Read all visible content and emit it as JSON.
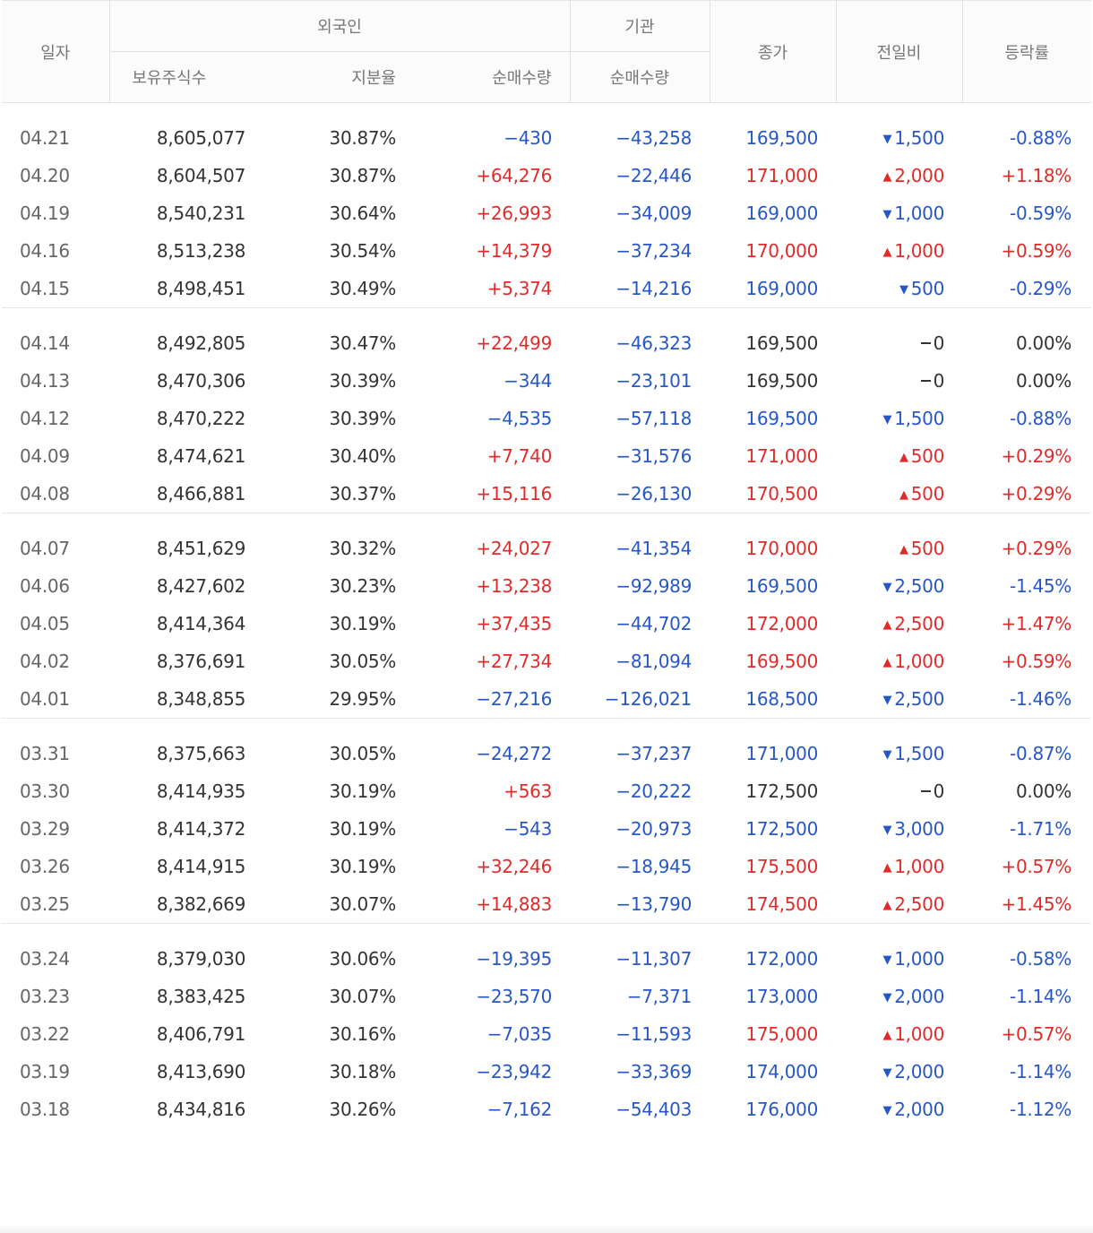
{
  "headers": {
    "date": "일자",
    "foreign_group": "외국인",
    "institution_group": "기관",
    "close": "종가",
    "change": "전일비",
    "rate": "등락률",
    "holdings": "보유주식수",
    "ratio": "지분율",
    "foreign_net": "순매수량",
    "inst_net": "순매수량"
  },
  "rows": [
    {
      "date": "04.21",
      "holdings": "8,605,077",
      "ratio": "30.87%",
      "foreign_net": "−430",
      "inst_net": "−43,258",
      "close": "169,500",
      "change": "1,500",
      "rate": "-0.88%",
      "dir": "down",
      "fdir": "down"
    },
    {
      "date": "04.20",
      "holdings": "8,604,507",
      "ratio": "30.87%",
      "foreign_net": "+64,276",
      "inst_net": "−22,446",
      "close": "171,000",
      "change": "2,000",
      "rate": "+1.18%",
      "dir": "up",
      "fdir": "up"
    },
    {
      "date": "04.19",
      "holdings": "8,540,231",
      "ratio": "30.64%",
      "foreign_net": "+26,993",
      "inst_net": "−34,009",
      "close": "169,000",
      "change": "1,000",
      "rate": "-0.59%",
      "dir": "down",
      "fdir": "up"
    },
    {
      "date": "04.16",
      "holdings": "8,513,238",
      "ratio": "30.54%",
      "foreign_net": "+14,379",
      "inst_net": "−37,234",
      "close": "170,000",
      "change": "1,000",
      "rate": "+0.59%",
      "dir": "up",
      "fdir": "up"
    },
    {
      "date": "04.15",
      "holdings": "8,498,451",
      "ratio": "30.49%",
      "foreign_net": "+5,374",
      "inst_net": "−14,216",
      "close": "169,000",
      "change": "500",
      "rate": "-0.29%",
      "dir": "down",
      "fdir": "up"
    },
    {
      "date": "04.14",
      "holdings": "8,492,805",
      "ratio": "30.47%",
      "foreign_net": "+22,499",
      "inst_net": "−46,323",
      "close": "169,500",
      "change": "0",
      "rate": "0.00%",
      "dir": "flat",
      "fdir": "up"
    },
    {
      "date": "04.13",
      "holdings": "8,470,306",
      "ratio": "30.39%",
      "foreign_net": "−344",
      "inst_net": "−23,101",
      "close": "169,500",
      "change": "0",
      "rate": "0.00%",
      "dir": "flat",
      "fdir": "down"
    },
    {
      "date": "04.12",
      "holdings": "8,470,222",
      "ratio": "30.39%",
      "foreign_net": "−4,535",
      "inst_net": "−57,118",
      "close": "169,500",
      "change": "1,500",
      "rate": "-0.88%",
      "dir": "down",
      "fdir": "down"
    },
    {
      "date": "04.09",
      "holdings": "8,474,621",
      "ratio": "30.40%",
      "foreign_net": "+7,740",
      "inst_net": "−31,576",
      "close": "171,000",
      "change": "500",
      "rate": "+0.29%",
      "dir": "up",
      "fdir": "up"
    },
    {
      "date": "04.08",
      "holdings": "8,466,881",
      "ratio": "30.37%",
      "foreign_net": "+15,116",
      "inst_net": "−26,130",
      "close": "170,500",
      "change": "500",
      "rate": "+0.29%",
      "dir": "up",
      "fdir": "up"
    },
    {
      "date": "04.07",
      "holdings": "8,451,629",
      "ratio": "30.32%",
      "foreign_net": "+24,027",
      "inst_net": "−41,354",
      "close": "170,000",
      "change": "500",
      "rate": "+0.29%",
      "dir": "up",
      "fdir": "up"
    },
    {
      "date": "04.06",
      "holdings": "8,427,602",
      "ratio": "30.23%",
      "foreign_net": "+13,238",
      "inst_net": "−92,989",
      "close": "169,500",
      "change": "2,500",
      "rate": "-1.45%",
      "dir": "down",
      "fdir": "up"
    },
    {
      "date": "04.05",
      "holdings": "8,414,364",
      "ratio": "30.19%",
      "foreign_net": "+37,435",
      "inst_net": "−44,702",
      "close": "172,000",
      "change": "2,500",
      "rate": "+1.47%",
      "dir": "up",
      "fdir": "up"
    },
    {
      "date": "04.02",
      "holdings": "8,376,691",
      "ratio": "30.05%",
      "foreign_net": "+27,734",
      "inst_net": "−81,094",
      "close": "169,500",
      "change": "1,000",
      "rate": "+0.59%",
      "dir": "up",
      "fdir": "up"
    },
    {
      "date": "04.01",
      "holdings": "8,348,855",
      "ratio": "29.95%",
      "foreign_net": "−27,216",
      "inst_net": "−126,021",
      "close": "168,500",
      "change": "2,500",
      "rate": "-1.46%",
      "dir": "down",
      "fdir": "down"
    },
    {
      "date": "03.31",
      "holdings": "8,375,663",
      "ratio": "30.05%",
      "foreign_net": "−24,272",
      "inst_net": "−37,237",
      "close": "171,000",
      "change": "1,500",
      "rate": "-0.87%",
      "dir": "down",
      "fdir": "down"
    },
    {
      "date": "03.30",
      "holdings": "8,414,935",
      "ratio": "30.19%",
      "foreign_net": "+563",
      "inst_net": "−20,222",
      "close": "172,500",
      "change": "0",
      "rate": "0.00%",
      "dir": "flat",
      "fdir": "up"
    },
    {
      "date": "03.29",
      "holdings": "8,414,372",
      "ratio": "30.19%",
      "foreign_net": "−543",
      "inst_net": "−20,973",
      "close": "172,500",
      "change": "3,000",
      "rate": "-1.71%",
      "dir": "down",
      "fdir": "down"
    },
    {
      "date": "03.26",
      "holdings": "8,414,915",
      "ratio": "30.19%",
      "foreign_net": "+32,246",
      "inst_net": "−18,945",
      "close": "175,500",
      "change": "1,000",
      "rate": "+0.57%",
      "dir": "up",
      "fdir": "up"
    },
    {
      "date": "03.25",
      "holdings": "8,382,669",
      "ratio": "30.07%",
      "foreign_net": "+14,883",
      "inst_net": "−13,790",
      "close": "174,500",
      "change": "2,500",
      "rate": "+1.45%",
      "dir": "up",
      "fdir": "up"
    },
    {
      "date": "03.24",
      "holdings": "8,379,030",
      "ratio": "30.06%",
      "foreign_net": "−19,395",
      "inst_net": "−11,307",
      "close": "172,000",
      "change": "1,000",
      "rate": "-0.58%",
      "dir": "down",
      "fdir": "down"
    },
    {
      "date": "03.23",
      "holdings": "8,383,425",
      "ratio": "30.07%",
      "foreign_net": "−23,570",
      "inst_net": "−7,371",
      "close": "173,000",
      "change": "2,000",
      "rate": "-1.14%",
      "dir": "down",
      "fdir": "down"
    },
    {
      "date": "03.22",
      "holdings": "8,406,791",
      "ratio": "30.16%",
      "foreign_net": "−7,035",
      "inst_net": "−11,593",
      "close": "175,000",
      "change": "1,000",
      "rate": "+0.57%",
      "dir": "up",
      "fdir": "down"
    },
    {
      "date": "03.19",
      "holdings": "8,413,690",
      "ratio": "30.18%",
      "foreign_net": "−23,942",
      "inst_net": "−33,369",
      "close": "174,000",
      "change": "2,000",
      "rate": "-1.14%",
      "dir": "down",
      "fdir": "down"
    },
    {
      "date": "03.18",
      "holdings": "8,434,816",
      "ratio": "30.26%",
      "foreign_net": "−7,162",
      "inst_net": "−54,403",
      "close": "176,000",
      "change": "2,000",
      "rate": "-1.12%",
      "dir": "down",
      "fdir": "down"
    }
  ],
  "group_size": 5,
  "colors": {
    "up": "#e12b2b",
    "down": "#2757c7",
    "flat": "#333333",
    "header_text": "#777777"
  }
}
